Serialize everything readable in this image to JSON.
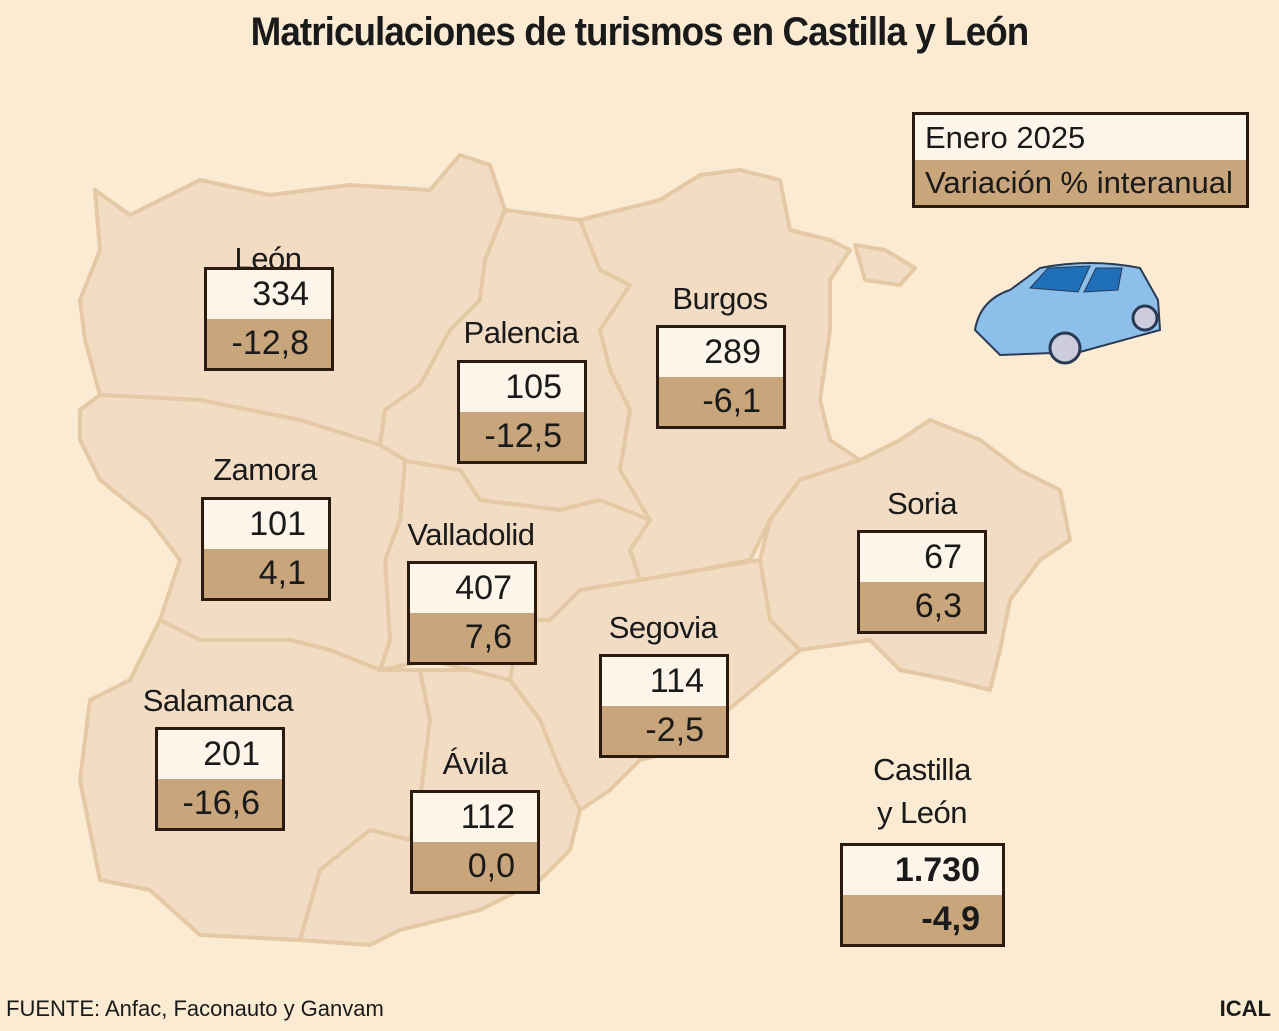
{
  "title": "Matriculaciones de turismos en Castilla y León",
  "legend": {
    "row1": "Enero 2025",
    "row2": "Variación % interanual"
  },
  "colors": {
    "background": "#fbebd3",
    "province": "#f2dcc4",
    "value_row": "#fdf5ea",
    "variation_row": "#c9a57c",
    "car": "#7fb6e6"
  },
  "provinces": [
    {
      "name": "León",
      "value": "334",
      "variation": "-12,8"
    },
    {
      "name": "Palencia",
      "value": "105",
      "variation": "-12,5"
    },
    {
      "name": "Burgos",
      "value": "289",
      "variation": "-6,1"
    },
    {
      "name": "Zamora",
      "value": "101",
      "variation": "4,1"
    },
    {
      "name": "Valladolid",
      "value": "407",
      "variation": "7,6"
    },
    {
      "name": "Soria",
      "value": "67",
      "variation": "6,3"
    },
    {
      "name": "Segovia",
      "value": "114",
      "variation": "-2,5"
    },
    {
      "name": "Salamanca",
      "value": "201",
      "variation": "-16,6"
    },
    {
      "name": "Ávila",
      "value": "112",
      "variation": "0,0"
    }
  ],
  "total": {
    "name_line1": "Castilla",
    "name_line2": "y León",
    "value": "1.730",
    "variation": "-4,9"
  },
  "source": "FUENTE: Anfac, Faconauto y Ganvam",
  "credit": "ICAL",
  "icon": "car-icon"
}
